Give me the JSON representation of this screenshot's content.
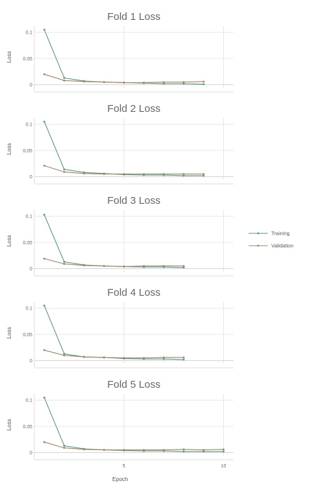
{
  "colors": {
    "training": "#5a9a86",
    "validation": "#a0846a"
  },
  "legend": {
    "position": "right",
    "items": [
      {
        "label": "Training",
        "color": "#5a9a86"
      },
      {
        "label": "Validation",
        "color": "#a0846a"
      }
    ]
  },
  "shared_axes": {
    "xlabel": "Epoch",
    "x_ticks": [
      "5",
      "10"
    ]
  },
  "chart_data": [
    {
      "type": "line",
      "title": "Fold 1 Loss",
      "ylabel": "Loss",
      "xlabel": "",
      "xlim": [
        0.5,
        10.5
      ],
      "ylim": [
        -0.006,
        0.112
      ],
      "y_ticks": [
        "0",
        "0.05",
        "0.1"
      ],
      "grid": true,
      "x": [
        1,
        2,
        3,
        4,
        5,
        6,
        7,
        8,
        9
      ],
      "series": [
        {
          "name": "Training",
          "values": [
            0.105,
            0.013,
            0.007,
            0.005,
            0.004,
            0.003,
            0.002,
            0.002,
            0.001
          ]
        },
        {
          "name": "Validation",
          "values": [
            0.02,
            0.008,
            0.006,
            0.005,
            0.004,
            0.004,
            0.005,
            0.005,
            0.006
          ]
        }
      ]
    },
    {
      "type": "line",
      "title": "Fold 2 Loss",
      "ylabel": "Loss",
      "xlabel": "",
      "xlim": [
        0.5,
        10.5
      ],
      "ylim": [
        -0.006,
        0.112
      ],
      "y_ticks": [
        "0",
        "0.05",
        "0.1"
      ],
      "grid": true,
      "x": [
        1,
        2,
        3,
        4,
        5,
        6,
        7,
        8,
        9
      ],
      "series": [
        {
          "name": "Training",
          "values": [
            0.105,
            0.014,
            0.008,
            0.006,
            0.004,
            0.003,
            0.003,
            0.002,
            0.002
          ]
        },
        {
          "name": "Validation",
          "values": [
            0.021,
            0.009,
            0.006,
            0.005,
            0.005,
            0.005,
            0.005,
            0.005,
            0.005
          ]
        }
      ]
    },
    {
      "type": "line",
      "title": "Fold 3 Loss",
      "ylabel": "Loss",
      "xlabel": "",
      "xlim": [
        0.5,
        10.5
      ],
      "ylim": [
        -0.006,
        0.112
      ],
      "y_ticks": [
        "0",
        "0.05",
        "0.1"
      ],
      "grid": true,
      "x": [
        1,
        2,
        3,
        4,
        5,
        6,
        7,
        8
      ],
      "series": [
        {
          "name": "Training",
          "values": [
            0.103,
            0.013,
            0.007,
            0.005,
            0.004,
            0.003,
            0.003,
            0.002
          ]
        },
        {
          "name": "Validation",
          "values": [
            0.019,
            0.009,
            0.006,
            0.005,
            0.004,
            0.005,
            0.005,
            0.005
          ]
        }
      ]
    },
    {
      "type": "line",
      "title": "Fold 4 Loss",
      "ylabel": "Loss",
      "xlabel": "",
      "xlim": [
        0.5,
        10.5
      ],
      "ylim": [
        -0.006,
        0.112
      ],
      "y_ticks": [
        "0",
        "0.05",
        "0.1"
      ],
      "grid": true,
      "x": [
        1,
        2,
        3,
        4,
        5,
        6,
        7,
        8
      ],
      "series": [
        {
          "name": "Training",
          "values": [
            0.105,
            0.013,
            0.007,
            0.006,
            0.004,
            0.003,
            0.003,
            0.002
          ]
        },
        {
          "name": "Validation",
          "values": [
            0.02,
            0.01,
            0.007,
            0.006,
            0.005,
            0.005,
            0.006,
            0.006
          ]
        }
      ]
    },
    {
      "type": "line",
      "title": "Fold 5 Loss",
      "ylabel": "Loss",
      "xlabel": "Epoch",
      "xlim": [
        0.5,
        10.5
      ],
      "ylim": [
        -0.006,
        0.112
      ],
      "y_ticks": [
        "0",
        "0.05",
        "0.1"
      ],
      "x_ticks": [
        "5",
        "10"
      ],
      "grid": true,
      "x": [
        1,
        2,
        3,
        4,
        5,
        6,
        7,
        8,
        9,
        10
      ],
      "series": [
        {
          "name": "Training",
          "values": [
            0.105,
            0.013,
            0.007,
            0.005,
            0.004,
            0.003,
            0.003,
            0.002,
            0.002,
            0.002
          ]
        },
        {
          "name": "Validation",
          "values": [
            0.02,
            0.009,
            0.006,
            0.005,
            0.005,
            0.005,
            0.005,
            0.006,
            0.005,
            0.006
          ]
        }
      ]
    }
  ]
}
